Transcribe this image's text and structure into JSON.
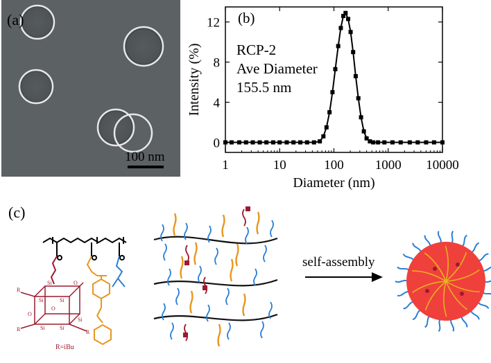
{
  "panel_a": {
    "label": "(a)",
    "scale_label": "100 nm"
  },
  "panel_b": {
    "label": "(b)",
    "annotation": [
      "RCP-2",
      "Ave Diameter",
      "155.5 nm"
    ]
  },
  "chart_data": {
    "type": "line",
    "title": "",
    "xlabel": "Diameter (nm)",
    "ylabel": "Intensity (%)",
    "x_scale": "log",
    "xlim": [
      1,
      10000
    ],
    "ylim": [
      -1,
      13.5
    ],
    "xticks": [
      1,
      10,
      100,
      1000,
      10000
    ],
    "xtick_labels": [
      "1",
      "10",
      "100",
      "1000",
      "10000"
    ],
    "yticks": [
      0,
      4,
      8,
      12
    ],
    "ytick_labels": [
      "0",
      "4",
      "8",
      "12"
    ],
    "series": [
      {
        "x": [
          1,
          1.3,
          1.8,
          2.4,
          3.2,
          4.3,
          5.7,
          7.6,
          10,
          13.5,
          18,
          24,
          32,
          43,
          55,
          64,
          73,
          83,
          94,
          106,
          120,
          134,
          149,
          164,
          183,
          203,
          226,
          252,
          282,
          316,
          356,
          400,
          460,
          530,
          650,
          850,
          1200,
          1700,
          2500,
          3500,
          5000,
          7000,
          10000
        ],
        "y": [
          0,
          0,
          0,
          0,
          0,
          0,
          0,
          0,
          0,
          0,
          0,
          0,
          0,
          0,
          0.1,
          0.6,
          1.5,
          3.0,
          5.0,
          7.3,
          9.6,
          11.4,
          12.6,
          12.9,
          12.3,
          11.0,
          9.0,
          6.6,
          4.4,
          2.5,
          1.1,
          0.4,
          0.1,
          0,
          0,
          0,
          0,
          0,
          0,
          0,
          0,
          0,
          0
        ]
      }
    ]
  },
  "panel_c": {
    "label": "(c)",
    "arrow_label": "self-assembly",
    "substituent_label": "R=iBu",
    "colors": {
      "backbone": "#000000",
      "poss": "#9b1a2e",
      "azo": "#e8961e",
      "amine": "#2a7fd4",
      "micelle": "#f0403c"
    }
  }
}
